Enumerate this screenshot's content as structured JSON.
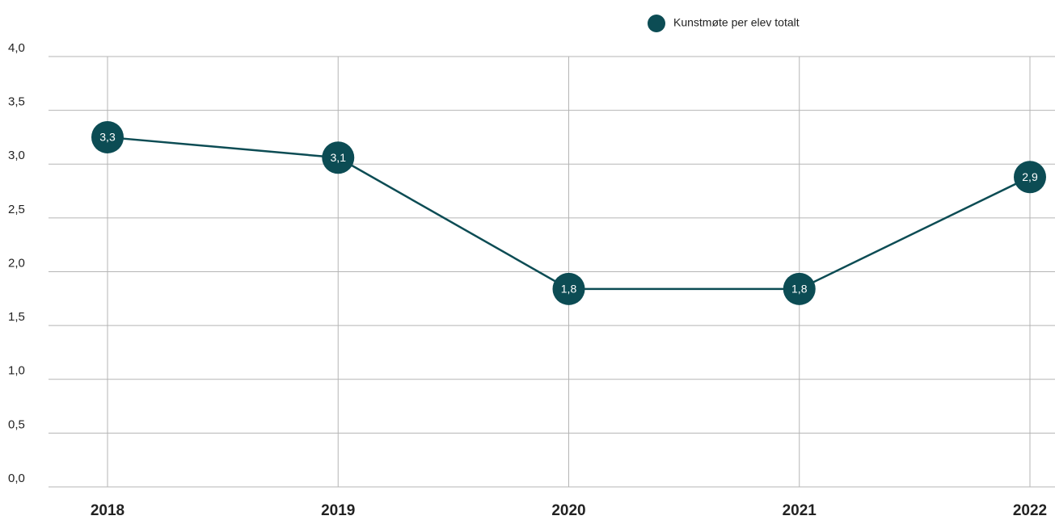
{
  "chart_data": {
    "type": "line",
    "categories": [
      "2018",
      "2019",
      "2020",
      "2021",
      "2022"
    ],
    "series": [
      {
        "name": "Kunstmøte per elev totalt",
        "color": "#0c4c54",
        "values": [
          3.25,
          3.06,
          1.84,
          1.84,
          2.88
        ],
        "value_labels": [
          "3,3",
          "3,1",
          "1,8",
          "1,8",
          "2,9"
        ]
      }
    ],
    "ylim": [
      0,
      4
    ],
    "yticks": [
      {
        "value": 0,
        "label": "0,0"
      },
      {
        "value": 0.5,
        "label": "0,5"
      },
      {
        "value": 1,
        "label": "1,0"
      },
      {
        "value": 1.5,
        "label": "1,5"
      },
      {
        "value": 2,
        "label": "2,0"
      },
      {
        "value": 2.5,
        "label": "2,5"
      },
      {
        "value": 3,
        "label": "3,0"
      },
      {
        "value": 3.5,
        "label": "3,5"
      },
      {
        "value": 4,
        "label": "4,0"
      }
    ],
    "grid": true,
    "legend": "top"
  }
}
